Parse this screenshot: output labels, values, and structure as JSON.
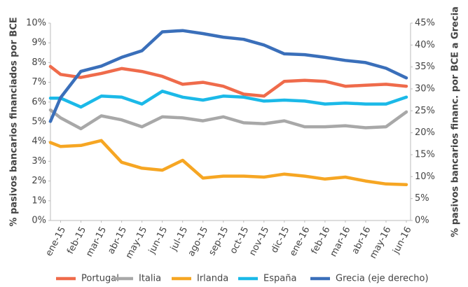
{
  "chart_data": {
    "type": "line",
    "y_label": "% pasivos bancarios financiados por BCE",
    "y2_label": "% pasivos bancarios financ. por BCE a Grecia",
    "x": [
      -0.5,
      0,
      1,
      2,
      3,
      4,
      5,
      6,
      7,
      8,
      9,
      10,
      11,
      12,
      13,
      14,
      15,
      16,
      17
    ],
    "xlim": [
      -0.5,
      17
    ],
    "xticks": [
      {
        "value": 0,
        "label": "ene-15"
      },
      {
        "value": 1,
        "label": "feb-15"
      },
      {
        "value": 2,
        "label": "mar-15"
      },
      {
        "value": 3,
        "label": "abr-15"
      },
      {
        "value": 4,
        "label": "may-15"
      },
      {
        "value": 5,
        "label": "jun-15"
      },
      {
        "value": 6,
        "label": "jul-15"
      },
      {
        "value": 7,
        "label": "ago-15"
      },
      {
        "value": 8,
        "label": "sep-15"
      },
      {
        "value": 9,
        "label": "oct-15"
      },
      {
        "value": 10,
        "label": "nov-15"
      },
      {
        "value": 11,
        "label": "dic-15"
      },
      {
        "value": 12,
        "label": "ene-16"
      },
      {
        "value": 13,
        "label": "feb-16"
      },
      {
        "value": 14,
        "label": "mar-16"
      },
      {
        "value": 15,
        "label": "abr-16"
      },
      {
        "value": 16,
        "label": "may-16"
      },
      {
        "value": 17,
        "label": "jun-16"
      }
    ],
    "ylim": [
      0,
      10
    ],
    "yticks": [
      {
        "value": 0,
        "label": "0%"
      },
      {
        "value": 1,
        "label": "1%"
      },
      {
        "value": 2,
        "label": "2%"
      },
      {
        "value": 3,
        "label": "3%"
      },
      {
        "value": 4,
        "label": "4%"
      },
      {
        "value": 5,
        "label": "5%"
      },
      {
        "value": 6,
        "label": "6%"
      },
      {
        "value": 7,
        "label": "7%"
      },
      {
        "value": 8,
        "label": "8%"
      },
      {
        "value": 9,
        "label": "9%"
      },
      {
        "value": 10,
        "label": "10%"
      }
    ],
    "y2lim": [
      0,
      45
    ],
    "y2ticks": [
      {
        "value": 0,
        "label": "0%"
      },
      {
        "value": 5,
        "label": "5%"
      },
      {
        "value": 10,
        "label": "10%"
      },
      {
        "value": 15,
        "label": "15%"
      },
      {
        "value": 20,
        "label": "20%"
      },
      {
        "value": 25,
        "label": "25%"
      },
      {
        "value": 30,
        "label": "30%"
      },
      {
        "value": 35,
        "label": "35%"
      },
      {
        "value": 40,
        "label": "40%"
      },
      {
        "value": 45,
        "label": "45%"
      }
    ],
    "series": [
      {
        "name": "Portugal",
        "color": "#ef6b4b",
        "values": [
          7.8,
          7.4,
          7.25,
          7.45,
          7.7,
          7.55,
          7.3,
          6.9,
          7.0,
          6.8,
          6.4,
          6.3,
          7.05,
          7.1,
          7.05,
          6.8,
          6.85,
          6.9,
          6.8
        ]
      },
      {
        "name": "Italia",
        "color": "#a8a8a8",
        "values": [
          5.6,
          5.2,
          4.65,
          5.3,
          5.1,
          4.75,
          5.25,
          5.2,
          5.05,
          5.25,
          4.95,
          4.9,
          5.05,
          4.75,
          4.75,
          4.8,
          4.7,
          4.75,
          5.5
        ]
      },
      {
        "name": "Irlanda",
        "color": "#f6a623",
        "values": [
          3.95,
          3.75,
          3.8,
          4.05,
          2.95,
          2.65,
          2.55,
          3.05,
          2.15,
          2.25,
          2.25,
          2.2,
          2.35,
          2.25,
          2.1,
          2.2,
          2.0,
          1.85,
          1.82
        ]
      },
      {
        "name": "España",
        "color": "#1bb9e8",
        "values": [
          6.2,
          6.2,
          5.75,
          6.3,
          6.25,
          5.9,
          6.55,
          6.25,
          6.1,
          6.3,
          6.25,
          6.05,
          6.1,
          6.05,
          5.9,
          5.95,
          5.9,
          5.9,
          6.25
        ]
      },
      {
        "name": "Grecia (eje derecho)",
        "color": "#3a6fba",
        "axis": "y2",
        "values": [
          22.6,
          28,
          34,
          35.2,
          37.2,
          38.7,
          43,
          43.3,
          42.6,
          41.8,
          41.3,
          40,
          38,
          37.8,
          37.2,
          36.5,
          36,
          34.7,
          32.5
        ]
      }
    ]
  }
}
